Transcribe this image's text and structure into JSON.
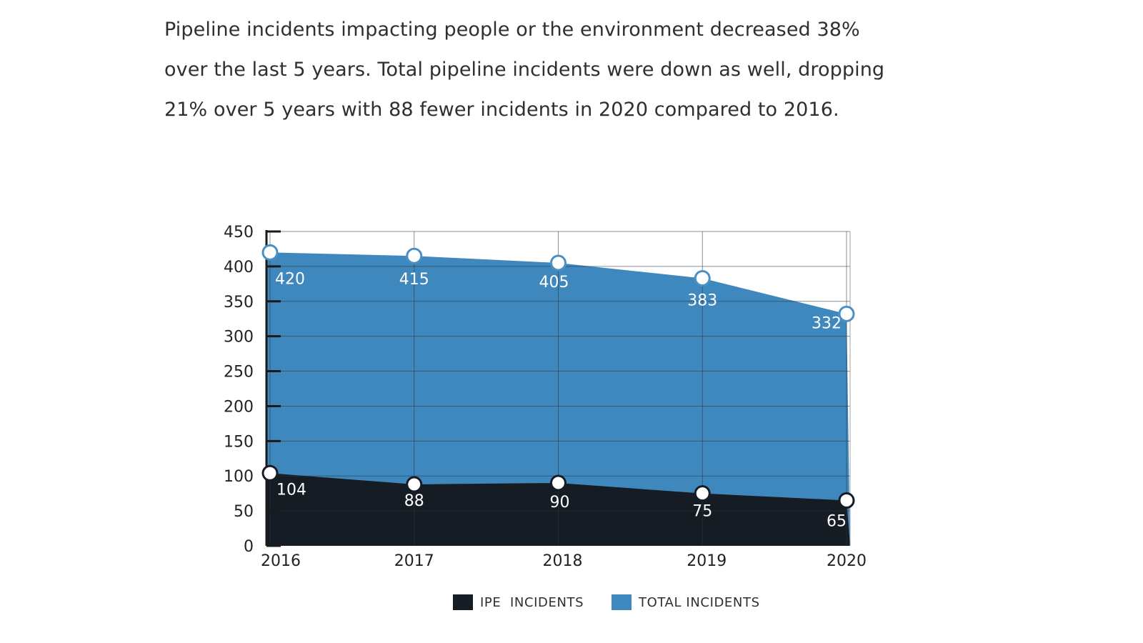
{
  "intro": {
    "lines": [
      "Pipeline incidents impacting people or the environment decreased 38%",
      "over the last 5 years. Total pipeline incidents were down as well, dropping",
      "21% over 5 years with 88 fewer incidents in 2020 compared to 2016."
    ]
  },
  "chart_data": {
    "type": "area",
    "title": "",
    "xlabel": "",
    "ylabel": "",
    "categories": [
      "2016",
      "2017",
      "2018",
      "2019",
      "2020"
    ],
    "ylim": [
      0,
      450
    ],
    "yticks": [
      0,
      50,
      100,
      150,
      200,
      250,
      300,
      350,
      400,
      450
    ],
    "grid": true,
    "legend_position": "bottom",
    "series": [
      {
        "name": "TOTAL INCIDENTS",
        "values": [
          420,
          415,
          405,
          383,
          332
        ],
        "color": "#3f88bd",
        "marker_stroke": "#4a90c4"
      },
      {
        "name": "IPE  INCIDENTS",
        "values": [
          104,
          88,
          90,
          75,
          65
        ],
        "color": "#161c24",
        "marker_stroke": "#161c24"
      }
    ]
  },
  "legend": {
    "ipe_label": "IPE  INCIDENTS",
    "total_label": "TOTAL INCIDENTS",
    "ipe_color": "#161c24",
    "total_color": "#3f88bd"
  }
}
